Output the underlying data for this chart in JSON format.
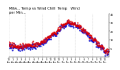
{
  "title1": "Milw... Temp vs Wind Chill  Temp   Wind",
  "title2": "per Min...",
  "bg_color": "#ffffff",
  "red_color": "#dd0000",
  "blue_color": "#0000cc",
  "y_min": -5,
  "y_max": 45,
  "y_ticks": [
    5,
    15,
    25,
    35,
    45
  ],
  "grid_color": "#888888",
  "title_fontsize": 3.8,
  "tick_fontsize": 2.8,
  "dot_size": 1.2,
  "plot_stride": 5
}
